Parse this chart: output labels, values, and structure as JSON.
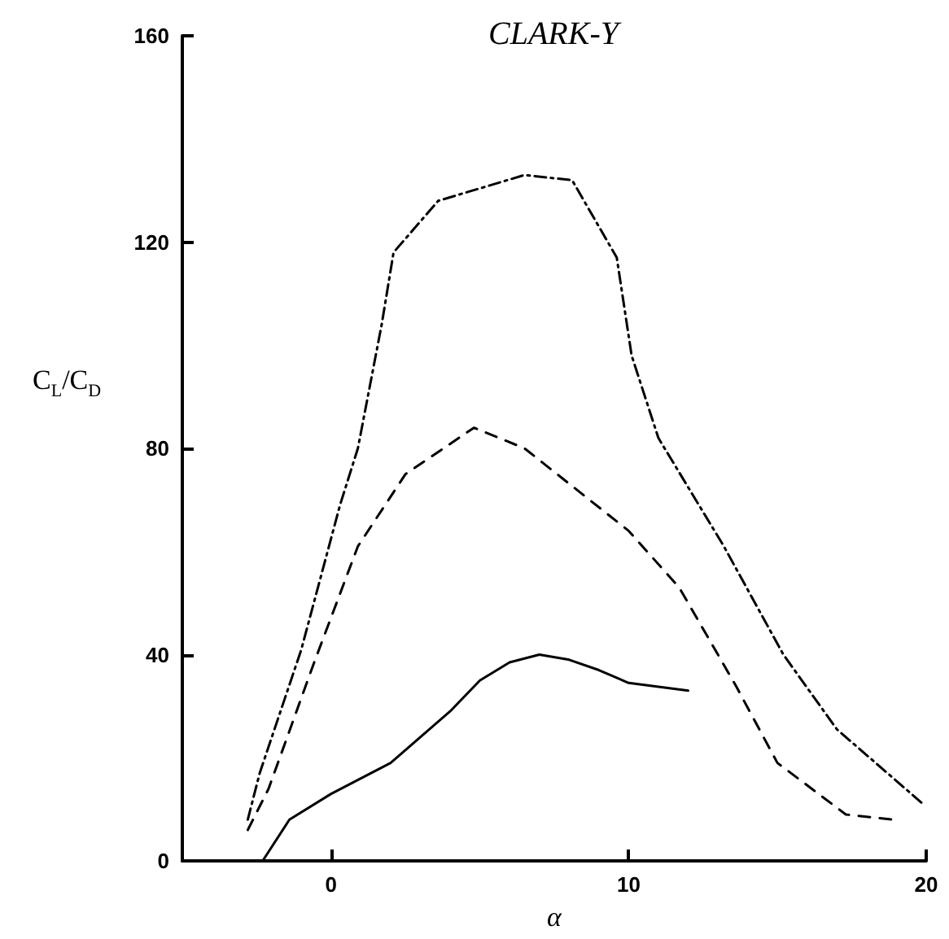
{
  "chart_data": {
    "type": "line",
    "title": "CLARK-Y",
    "xlabel": "α",
    "ylabel": "C$_{L}$/C$_{D}$",
    "xlim": [
      -5,
      20
    ],
    "xticks": [
      0,
      10,
      20
    ],
    "ylim": [
      0,
      160
    ],
    "yticks": [
      0,
      40,
      80,
      120,
      160
    ],
    "grid": false,
    "marker": "none",
    "series": [
      {
        "color": "#000000",
        "line_style": "solid",
        "x": [
          -2.3,
          -1.4,
          0,
          2,
          4,
          5,
          6,
          7,
          8,
          9,
          10,
          12
        ],
        "values": [
          0,
          8,
          13,
          19,
          29,
          35,
          38.5,
          40,
          39,
          37,
          34.5,
          33
        ]
      },
      {
        "color": "#000000",
        "line_style": "dashed",
        "x": [
          -2.8,
          -2.1,
          -0.6,
          0.9,
          2.5,
          4.8,
          6.5,
          10,
          11.7,
          13.6,
          15,
          17.3,
          18.9
        ],
        "values": [
          6,
          14,
          38,
          61,
          75,
          84,
          80,
          64,
          53,
          34,
          19,
          9,
          8
        ]
      },
      {
        "color": "#000000",
        "line_style": "dotted",
        "x": [
          -2.8,
          -2.4,
          -1,
          0.3,
          0.9,
          1.7,
          2.1,
          3.6,
          6.5,
          8.1,
          9.6,
          10.1,
          11,
          13.2,
          15.2,
          17,
          19.9
        ],
        "values": [
          8,
          17,
          41,
          69,
          80,
          104,
          118,
          128,
          133,
          132,
          117,
          98,
          82,
          61,
          40,
          25.5,
          11
        ]
      }
    ]
  }
}
